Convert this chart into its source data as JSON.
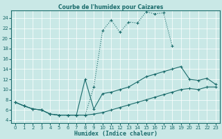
{
  "title": "Courbe de l'humidex pour Caizares",
  "xlabel": "Humidex (Indice chaleur)",
  "xlim": [
    -0.5,
    23.5
  ],
  "ylim": [
    3.5,
    25.5
  ],
  "yticks": [
    4,
    6,
    8,
    10,
    12,
    14,
    16,
    18,
    20,
    22,
    24
  ],
  "xticks": [
    0,
    1,
    2,
    3,
    4,
    5,
    6,
    7,
    8,
    9,
    10,
    11,
    12,
    13,
    14,
    15,
    16,
    17,
    18,
    19,
    20,
    21,
    22,
    23
  ],
  "bg_color": "#c9e8e6",
  "line_color": "#1a6b6b",
  "line1_x": [
    0,
    1,
    2,
    3,
    4,
    5,
    6,
    7,
    8,
    9,
    10,
    11,
    12,
    13,
    14,
    15,
    16,
    17,
    18
  ],
  "line1_y": [
    7.5,
    6.8,
    6.2,
    6.0,
    5.2,
    5.0,
    5.0,
    5.0,
    5.0,
    10.5,
    21.5,
    23.6,
    21.2,
    23.2,
    23.0,
    25.2,
    24.8,
    25.0,
    18.5
  ],
  "line2_x": [
    0,
    1,
    2,
    3,
    4,
    5,
    6,
    7,
    8,
    9,
    10,
    11,
    12,
    13,
    14,
    15,
    16,
    17,
    18,
    19,
    20,
    21,
    22,
    23
  ],
  "line2_y": [
    7.5,
    6.8,
    6.2,
    6.0,
    5.2,
    5.0,
    5.0,
    5.0,
    12.0,
    6.2,
    9.2,
    9.5,
    10.0,
    10.5,
    11.5,
    12.5,
    13.0,
    13.5,
    14.0,
    14.5,
    12.0,
    11.8,
    12.2,
    11.0
  ],
  "line3_x": [
    0,
    1,
    2,
    3,
    4,
    5,
    6,
    7,
    8,
    9,
    10,
    11,
    12,
    13,
    14,
    15,
    16,
    17,
    18,
    19,
    20,
    21,
    22,
    23
  ],
  "line3_y": [
    7.5,
    6.8,
    6.2,
    6.0,
    5.2,
    5.0,
    5.0,
    5.0,
    5.0,
    5.2,
    5.5,
    6.0,
    6.5,
    7.0,
    7.5,
    8.0,
    8.5,
    9.0,
    9.5,
    10.0,
    10.2,
    10.0,
    10.5,
    10.5
  ]
}
